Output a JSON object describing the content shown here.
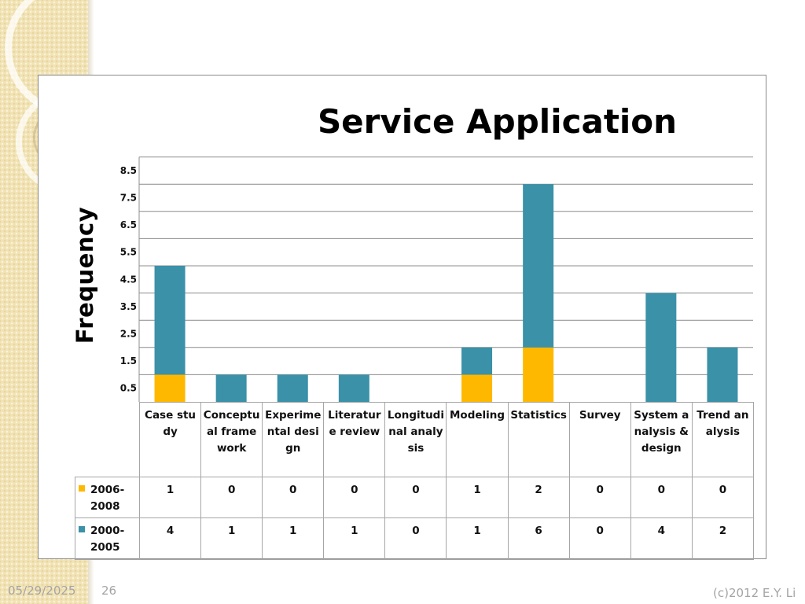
{
  "slide": {
    "footer_date": "05/29/2025",
    "page_number": "26",
    "copyright": "(c)2012 E.Y. Li"
  },
  "colors": {
    "series_2006_2008": "#ffb800",
    "series_2000_2005": "#3a91a8",
    "gridline": "#8c8c8c",
    "background_band": "#f1e3b4"
  },
  "chart_data": {
    "type": "bar",
    "stacked": true,
    "title": "Service Application",
    "ylabel": "Frequency",
    "xlabel": "",
    "ylim": [
      0,
      9
    ],
    "yticks": [
      "0.5",
      "1.5",
      "2.5",
      "3.5",
      "4.5",
      "5.5",
      "6.5",
      "7.5",
      "8.5"
    ],
    "ytick_values": [
      0.5,
      1.5,
      2.5,
      3.5,
      4.5,
      5.5,
      6.5,
      7.5,
      8.5
    ],
    "gridlines": [
      1,
      2,
      3,
      4,
      5,
      6,
      7,
      8,
      9
    ],
    "grid": true,
    "legend": "data table",
    "categories": [
      "Case study",
      "Conceptual framework",
      "Experimental design",
      "Literature review",
      "Longitudinal analysis",
      "Modeling",
      "Statistics",
      "Survey",
      "System analysis & design",
      "Trend analysis"
    ],
    "series": [
      {
        "name": "2006-2008",
        "values": [
          1,
          0,
          0,
          0,
          0,
          1,
          2,
          0,
          0,
          0
        ]
      },
      {
        "name": "2000-2005",
        "values": [
          4,
          1,
          1,
          1,
          0,
          1,
          6,
          0,
          4,
          2
        ]
      }
    ]
  }
}
